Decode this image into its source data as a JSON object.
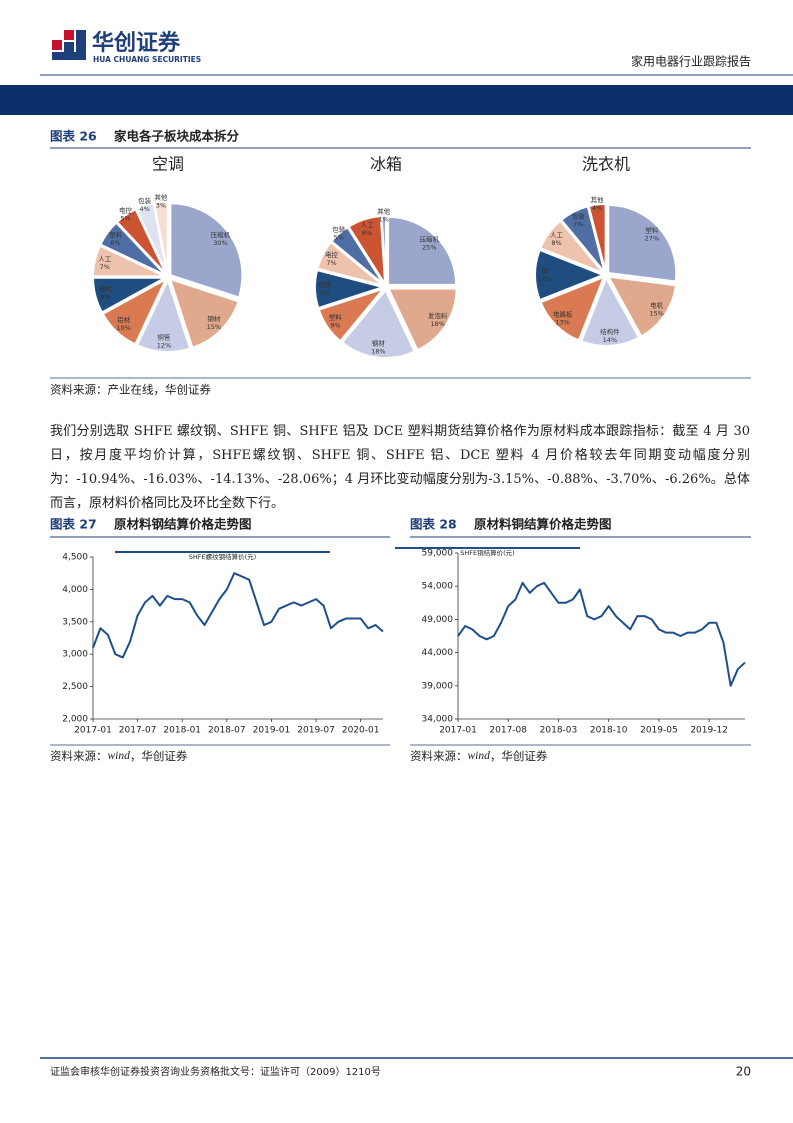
{
  "header": {
    "logo_cn": "华创证券",
    "logo_en": "HUA CHUANG SECURITIES",
    "report_title": "家用电器行业跟踪报告"
  },
  "figures": [
    {
      "label": "图表 26",
      "title": "家电各子板块成本拆分",
      "source": "资料来源：产业在线，华创证券"
    },
    {
      "label": "图表 27",
      "title": "原材料钢结算价格走势图",
      "source_prefix": "资料来源：",
      "source_name": "wind",
      "source_suffix": "，华创证券"
    },
    {
      "label": "图表 28",
      "title": "原材料铜结算价格走势图",
      "source_prefix": "资料来源：",
      "source_name": "wind",
      "source_suffix": "，华创证券"
    }
  ],
  "paragraph": "我们分别选取 SHFE 螺纹钢、SHFE 铜、SHFE 铝及 DCE 塑料期货结算价格作为原材料成本跟踪指标：截至 4 月 30 日，按月度平均价计算，SHFE螺纹钢、SHFE 铜、SHFE 铝、DCE 塑料 4 月价格较去年同期变动幅度分别为：-10.94%、-16.03%、-14.13%、-28.06%；4 月环比变动幅度分别为-3.15%、-0.88%、-3.70%、-6.26%。总体而言，原材料价格同比及环比全数下行。",
  "chart_data": [
    {
      "type": "pie",
      "title": "空调",
      "categories": [
        "压缩机",
        "钢材",
        "铜管",
        "铝材",
        "电机",
        "人工",
        "塑料",
        "电控",
        "包装",
        "其他"
      ],
      "values": [
        30,
        15,
        12,
        10,
        8,
        7,
        6,
        5,
        4,
        3
      ],
      "value_labels": [
        "30%",
        "15%",
        "12%",
        "10%",
        "8%",
        "7%",
        "6%",
        "5%",
        "4%",
        "3%"
      ],
      "colors": [
        "#9ba6cc",
        "#e0a98d",
        "#c6cce5",
        "#d97a53",
        "#1f4d7f",
        "#eec3ae",
        "#4f6ea5",
        "#cc5433",
        "#dfe2ef",
        "#f6ddd2"
      ]
    },
    {
      "type": "pie",
      "title": "冰箱",
      "categories": [
        "压缩机",
        "发泡料",
        "钢材",
        "塑料",
        "铜管",
        "电控",
        "包装",
        "人工",
        "其他"
      ],
      "values": [
        25,
        18,
        18,
        9,
        9,
        7,
        5,
        8,
        1
      ],
      "value_labels": [
        "25%",
        "18%",
        "18%",
        "9%",
        "9%",
        "7%",
        "5%",
        "8%",
        "1%"
      ],
      "colors": [
        "#9ba6cc",
        "#e0a98d",
        "#c6cce5",
        "#d97a53",
        "#1f4d7f",
        "#eec3ae",
        "#4f6ea5",
        "#cc5433",
        "#8fa0c8"
      ]
    },
    {
      "type": "pie",
      "title": "洗衣机",
      "categories": [
        "塑料",
        "电机",
        "结构件",
        "电路板",
        "钢",
        "人工",
        "包装",
        "其他"
      ],
      "values": [
        27,
        15,
        14,
        13,
        12,
        8,
        7,
        4
      ],
      "value_labels": [
        "27%",
        "15%",
        "14%",
        "13%",
        "12%",
        "8%",
        "7%",
        "4%"
      ],
      "colors": [
        "#9ba6cc",
        "#e0a98d",
        "#c6cce5",
        "#d97a53",
        "#1f4d7f",
        "#eec3ae",
        "#4f6ea5",
        "#cc5433"
      ]
    },
    {
      "type": "line",
      "x": [
        "2017-01",
        "2017-02",
        "2017-03",
        "2017-04",
        "2017-05",
        "2017-06",
        "2017-07",
        "2017-08",
        "2017-09",
        "2017-10",
        "2017-11",
        "2017-12",
        "2018-01",
        "2018-02",
        "2018-03",
        "2018-04",
        "2018-05",
        "2018-06",
        "2018-07",
        "2018-08",
        "2018-09",
        "2018-10",
        "2018-11",
        "2018-12",
        "2019-01",
        "2019-02",
        "2019-03",
        "2019-04",
        "2019-05",
        "2019-06",
        "2019-07",
        "2019-08",
        "2019-09",
        "2019-10",
        "2019-11",
        "2019-12",
        "2020-01",
        "2020-02",
        "2020-03",
        "2020-04"
      ],
      "series": [
        {
          "name": "SHFE螺纹钢结算价(元)",
          "color": "#1f4e8c",
          "values": [
            3100,
            3400,
            3300,
            3000,
            2950,
            3200,
            3600,
            3800,
            3900,
            3750,
            3900,
            3850,
            3850,
            3800,
            3600,
            3450,
            3650,
            3850,
            4000,
            4250,
            4200,
            4150,
            3800,
            3450,
            3500,
            3700,
            3750,
            3800,
            3750,
            3800,
            3850,
            3750,
            3400,
            3500,
            3550,
            3550,
            3550,
            3400,
            3450,
            3350
          ]
        }
      ],
      "xlim": [
        "2017-01",
        "2020-04"
      ],
      "xticks": [
        "2017-01",
        "2017-07",
        "2018-01",
        "2018-07",
        "2019-01",
        "2019-07",
        "2020-01"
      ],
      "ylim": [
        2000,
        4500
      ],
      "yticks": [
        {
          "value": 2000,
          "label": "2,000"
        },
        {
          "value": 2500,
          "label": "2,500"
        },
        {
          "value": 3000,
          "label": "3,000"
        },
        {
          "value": 3500,
          "label": "3,500"
        },
        {
          "value": 4000,
          "label": "4,000"
        },
        {
          "value": 4500,
          "label": "4,500"
        }
      ],
      "legend": "top"
    },
    {
      "type": "line",
      "x": [
        "2017-01",
        "2017-02",
        "2017-03",
        "2017-04",
        "2017-05",
        "2017-06",
        "2017-07",
        "2017-08",
        "2017-09",
        "2017-10",
        "2017-11",
        "2017-12",
        "2018-01",
        "2018-02",
        "2018-03",
        "2018-04",
        "2018-05",
        "2018-06",
        "2018-07",
        "2018-08",
        "2018-09",
        "2018-10",
        "2018-11",
        "2018-12",
        "2019-01",
        "2019-02",
        "2019-03",
        "2019-04",
        "2019-05",
        "2019-06",
        "2019-07",
        "2019-08",
        "2019-09",
        "2019-10",
        "2019-11",
        "2019-12",
        "2020-01",
        "2020-02",
        "2020-03",
        "2020-04",
        "2020-05"
      ],
      "series": [
        {
          "name": "SHFE铜结算价(元)",
          "color": "#1f4e8c",
          "values": [
            46500,
            48000,
            47500,
            46500,
            46000,
            46500,
            48500,
            51000,
            52000,
            54500,
            53000,
            54000,
            54500,
            53000,
            51500,
            51500,
            52000,
            53500,
            49500,
            49000,
            49500,
            51000,
            49500,
            48500,
            47500,
            49500,
            49500,
            49000,
            47500,
            47000,
            47000,
            46500,
            47000,
            47000,
            47500,
            48500,
            48500,
            45500,
            39000,
            41500,
            42500
          ]
        }
      ],
      "xlim": [
        "2017-01",
        "2020-05"
      ],
      "xticks": [
        "2017-01",
        "2017-08",
        "2018-03",
        "2018-10",
        "2019-05",
        "2019-12"
      ],
      "ylim": [
        34000,
        59000
      ],
      "yticks": [
        {
          "value": 34000,
          "label": "34,000"
        },
        {
          "value": 39000,
          "label": "39,000"
        },
        {
          "value": 44000,
          "label": "44,000"
        },
        {
          "value": 49000,
          "label": "49,000"
        },
        {
          "value": 54000,
          "label": "54,000"
        },
        {
          "value": 59000,
          "label": "59,000"
        }
      ],
      "legend": "top"
    }
  ],
  "footer": {
    "text": "证监会审核华创证券投资咨询业务资格批文号：证监许可（2009）1210号",
    "page": "20"
  }
}
